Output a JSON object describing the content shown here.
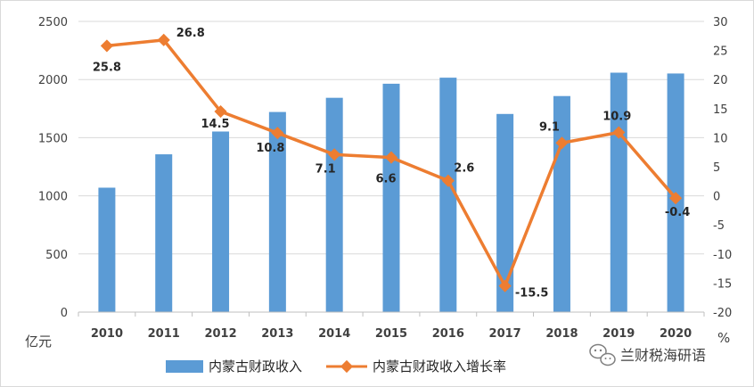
{
  "chart_data": {
    "type": "bar+line",
    "categories": [
      "2010",
      "2011",
      "2012",
      "2013",
      "2014",
      "2015",
      "2016",
      "2017",
      "2018",
      "2019",
      "2020"
    ],
    "series": [
      {
        "name": "内蒙古财政收入",
        "type": "bar",
        "axis": "left",
        "color": "#5B9BD5",
        "values": [
          1070,
          1357,
          1553,
          1721,
          1843,
          1964,
          2016,
          1704,
          1858,
          2059,
          2052
        ]
      },
      {
        "name": "内蒙古财政收入增长率",
        "type": "line",
        "axis": "right",
        "color": "#ED7D31",
        "values": [
          25.8,
          26.8,
          14.5,
          10.8,
          7.1,
          6.6,
          2.6,
          -15.5,
          9.1,
          10.9,
          -0.4
        ],
        "labels": [
          "25.8",
          "26.8",
          "14.5",
          "10.8",
          "7.1",
          "6.6",
          "2.6",
          "-15.5",
          "9.1",
          "10.9",
          "-0.4"
        ]
      }
    ],
    "y_left": {
      "label": "亿元",
      "ylim": [
        0,
        2500
      ],
      "ticks": [
        "0",
        "500",
        "1000",
        "1500",
        "2000",
        "2500"
      ]
    },
    "y_right": {
      "label": "%",
      "ylim": [
        -20,
        30
      ],
      "ticks": [
        "-20",
        "-15",
        "-10",
        "-5",
        "0",
        "5",
        "10",
        "15",
        "20",
        "25",
        "30"
      ]
    },
    "grid": true,
    "legend_position": "bottom"
  },
  "watermark": {
    "text": "兰财税海研语",
    "icon": "wechat-icon"
  }
}
